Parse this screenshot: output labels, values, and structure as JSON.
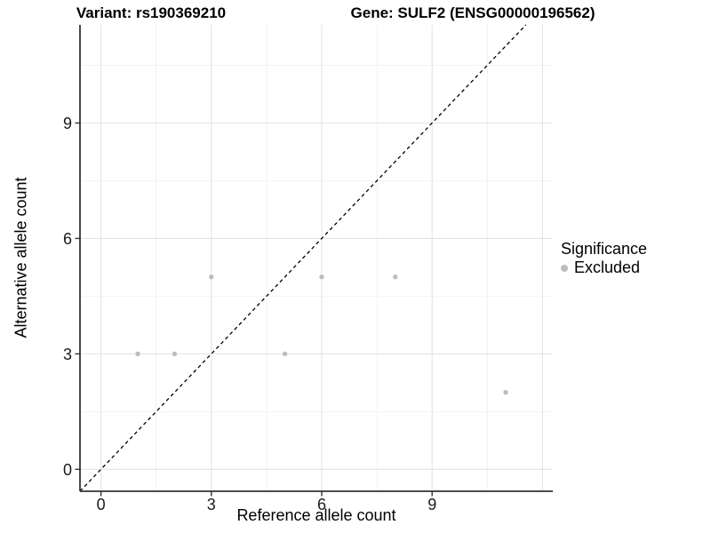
{
  "header": {
    "title_variant": "Variant: rs190369210",
    "title_gene": "Gene: SULF2 (ENSG00000196562)"
  },
  "axes": {
    "x_label": "Reference allele count",
    "y_label": "Alternative allele count"
  },
  "legend": {
    "title": "Significance",
    "items": [
      {
        "label": "Excluded",
        "color": "#bdbdbd"
      }
    ]
  },
  "colors": {
    "background": "#ffffff",
    "point": "#bdbdbd",
    "axis_line": "#333333",
    "tick_mark": "#333333",
    "tick_label": "#1a1a1a",
    "grid_major": "#e4e4e4",
    "grid_minor": "#f2f2f2",
    "reference_line": "#000000"
  },
  "chart_data": {
    "type": "scatter",
    "title": "Variant: rs190369210  /  Gene: SULF2 (ENSG00000196562)",
    "xlabel": "Reference allele count",
    "ylabel": "Alternative allele count",
    "xlim": [
      -0.57,
      12.28
    ],
    "ylim": [
      -0.57,
      11.55
    ],
    "x_ticks": [
      0,
      3,
      6,
      9
    ],
    "y_ticks": [
      0,
      3,
      6,
      9
    ],
    "x_grid_major": [
      0,
      3,
      6,
      9,
      12
    ],
    "x_grid_minor": [
      1.5,
      4.5,
      7.5,
      10.5
    ],
    "y_grid_major": [
      0,
      3,
      6,
      9
    ],
    "y_grid_minor": [
      1.5,
      4.5,
      7.5,
      10.5
    ],
    "grid": true,
    "legend_position": "right",
    "legend_title": "Significance",
    "series": [
      {
        "name": "Excluded",
        "color": "#bdbdbd",
        "points": [
          [
            1,
            3
          ],
          [
            2,
            3
          ],
          [
            3,
            5
          ],
          [
            5,
            3
          ],
          [
            6,
            5
          ],
          [
            8,
            5
          ],
          [
            11,
            2
          ]
        ]
      }
    ],
    "reference_line": {
      "type": "identity",
      "slope": 1,
      "intercept": 0,
      "style": "dashed",
      "color": "#000000"
    }
  }
}
